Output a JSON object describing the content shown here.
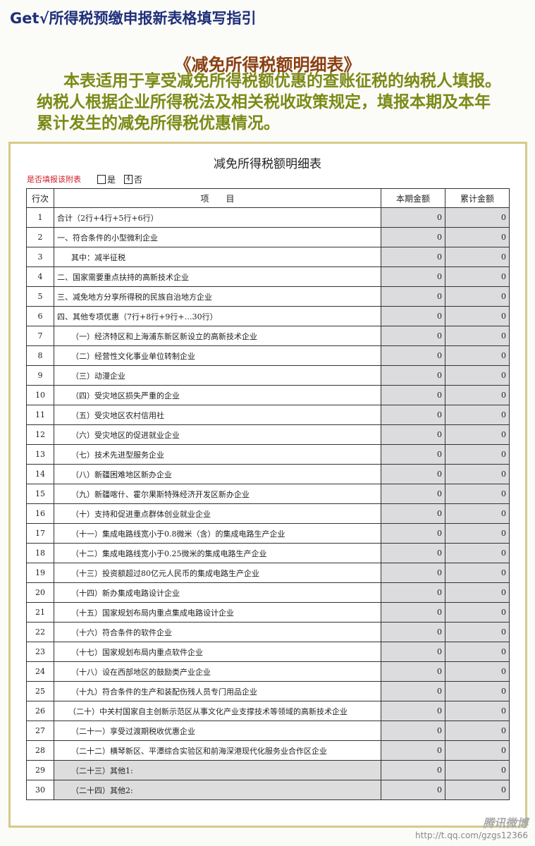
{
  "header": {
    "title": "Get√所得税预缴申报新表格填写指引"
  },
  "section": {
    "title": "《减免所得税额明细表》",
    "intro": "本表适用于享受减免所得税额优惠的查账征税的纳税人填报。纳税人根据企业所得税法及相关税收政策规定，填报本期及本年累计发生的减免所得税优惠情况。"
  },
  "form": {
    "title": "减免所得税额明细表",
    "fill_label": "是否填报该附表",
    "option_yes": "是",
    "option_no": "否",
    "selected": "否",
    "checked_mark": "4",
    "columns": [
      "行次",
      "项　　目",
      "本期金额",
      "累计金额"
    ],
    "rows": [
      {
        "no": "1",
        "item": "合计（2行+4行+5行+6行）",
        "current": "0",
        "cumulative": "0",
        "indent": 0
      },
      {
        "no": "2",
        "item": "一、符合条件的小型微利企业",
        "current": "0",
        "cumulative": "0",
        "indent": 0
      },
      {
        "no": "3",
        "item": "其中：减半征税",
        "current": "0",
        "cumulative": "0",
        "indent": 1
      },
      {
        "no": "4",
        "item": "二、国家需要重点扶持的高新技术企业",
        "current": "0",
        "cumulative": "0",
        "indent": 0
      },
      {
        "no": "5",
        "item": "三、减免地方分享所得税的民族自治地方企业",
        "current": "0",
        "cumulative": "0",
        "indent": 0
      },
      {
        "no": "6",
        "item": "四、其他专项优惠（7行+8行+9行+…30行）",
        "current": "0",
        "cumulative": "0",
        "indent": 0
      },
      {
        "no": "7",
        "item": "（一）经济特区和上海浦东新区新设立的高新技术企业",
        "current": "0",
        "cumulative": "0",
        "indent": 1
      },
      {
        "no": "8",
        "item": "（二）经营性文化事业单位转制企业",
        "current": "0",
        "cumulative": "0",
        "indent": 1
      },
      {
        "no": "9",
        "item": "（三）动漫企业",
        "current": "0",
        "cumulative": "0",
        "indent": 1
      },
      {
        "no": "10",
        "item": "（四）受灾地区损失严重的企业",
        "current": "0",
        "cumulative": "0",
        "indent": 1
      },
      {
        "no": "11",
        "item": "（五）受灾地区农村信用社",
        "current": "0",
        "cumulative": "0",
        "indent": 1
      },
      {
        "no": "12",
        "item": "（六）受灾地区的促进就业企业",
        "current": "0",
        "cumulative": "0",
        "indent": 1
      },
      {
        "no": "13",
        "item": "（七）技术先进型服务企业",
        "current": "0",
        "cumulative": "0",
        "indent": 1
      },
      {
        "no": "14",
        "item": "（八）新疆困难地区新办企业",
        "current": "0",
        "cumulative": "0",
        "indent": 1
      },
      {
        "no": "15",
        "item": "（九）新疆喀什、霍尔果斯特殊经济开发区新办企业",
        "current": "0",
        "cumulative": "0",
        "indent": 1
      },
      {
        "no": "16",
        "item": "（十）支持和促进重点群体创业就业企业",
        "current": "0",
        "cumulative": "0",
        "indent": 1
      },
      {
        "no": "17",
        "item": "（十一）集成电路线宽小于0.8微米（含）的集成电路生产企业",
        "current": "0",
        "cumulative": "0",
        "indent": 1
      },
      {
        "no": "18",
        "item": "（十二）集成电路线宽小于0.25微米的集成电路生产企业",
        "current": "0",
        "cumulative": "0",
        "indent": 1
      },
      {
        "no": "19",
        "item": "（十三）投资额超过80亿元人民币的集成电路生产企业",
        "current": "0",
        "cumulative": "0",
        "indent": 1
      },
      {
        "no": "20",
        "item": "（十四）新办集成电路设计企业",
        "current": "0",
        "cumulative": "0",
        "indent": 1
      },
      {
        "no": "21",
        "item": "（十五）国家规划布局内重点集成电路设计企业",
        "current": "0",
        "cumulative": "0",
        "indent": 1
      },
      {
        "no": "22",
        "item": "（十六）符合条件的软件企业",
        "current": "0",
        "cumulative": "0",
        "indent": 1
      },
      {
        "no": "23",
        "item": "（十七）国家规划布局内重点软件企业",
        "current": "0",
        "cumulative": "0",
        "indent": 1
      },
      {
        "no": "24",
        "item": "（十八）设在西部地区的鼓励类产业企业",
        "current": "0",
        "cumulative": "0",
        "indent": 1
      },
      {
        "no": "25",
        "item": "（十九）符合条件的生产和装配伤残人员专门用品企业",
        "current": "0",
        "cumulative": "0",
        "indent": 1
      },
      {
        "no": "26",
        "item": "（二十）中关村国家自主创新示范区从事文化产业支撑技术等领域的高新技术企业",
        "current": "0",
        "cumulative": "0",
        "indent": 2
      },
      {
        "no": "27",
        "item": "（二十一）享受过渡期税收优惠企业",
        "current": "0",
        "cumulative": "0",
        "indent": 1
      },
      {
        "no": "28",
        "item": "（二十二）横琴新区、平潭综合实验区和前海深港现代化服务业合作区企业",
        "current": "0",
        "cumulative": "0",
        "indent": 1
      },
      {
        "no": "29",
        "item": "（二十三）其他1:",
        "current": "0",
        "cumulative": "0",
        "indent": 1,
        "gray": true
      },
      {
        "no": "30",
        "item": "（二十四）其他2:",
        "current": "0",
        "cumulative": "0",
        "indent": 1,
        "gray": true
      }
    ]
  },
  "watermark": {
    "logo": "腾讯微博",
    "url": "http://t.qq.com/gzgs12366"
  },
  "colors": {
    "title": "#1f2f7a",
    "section_title": "#8a3f12",
    "intro": "#7c8a16",
    "fill_label": "#d0202a",
    "frame": "#d8c98a",
    "amount_cell": "#dcdcdf"
  }
}
